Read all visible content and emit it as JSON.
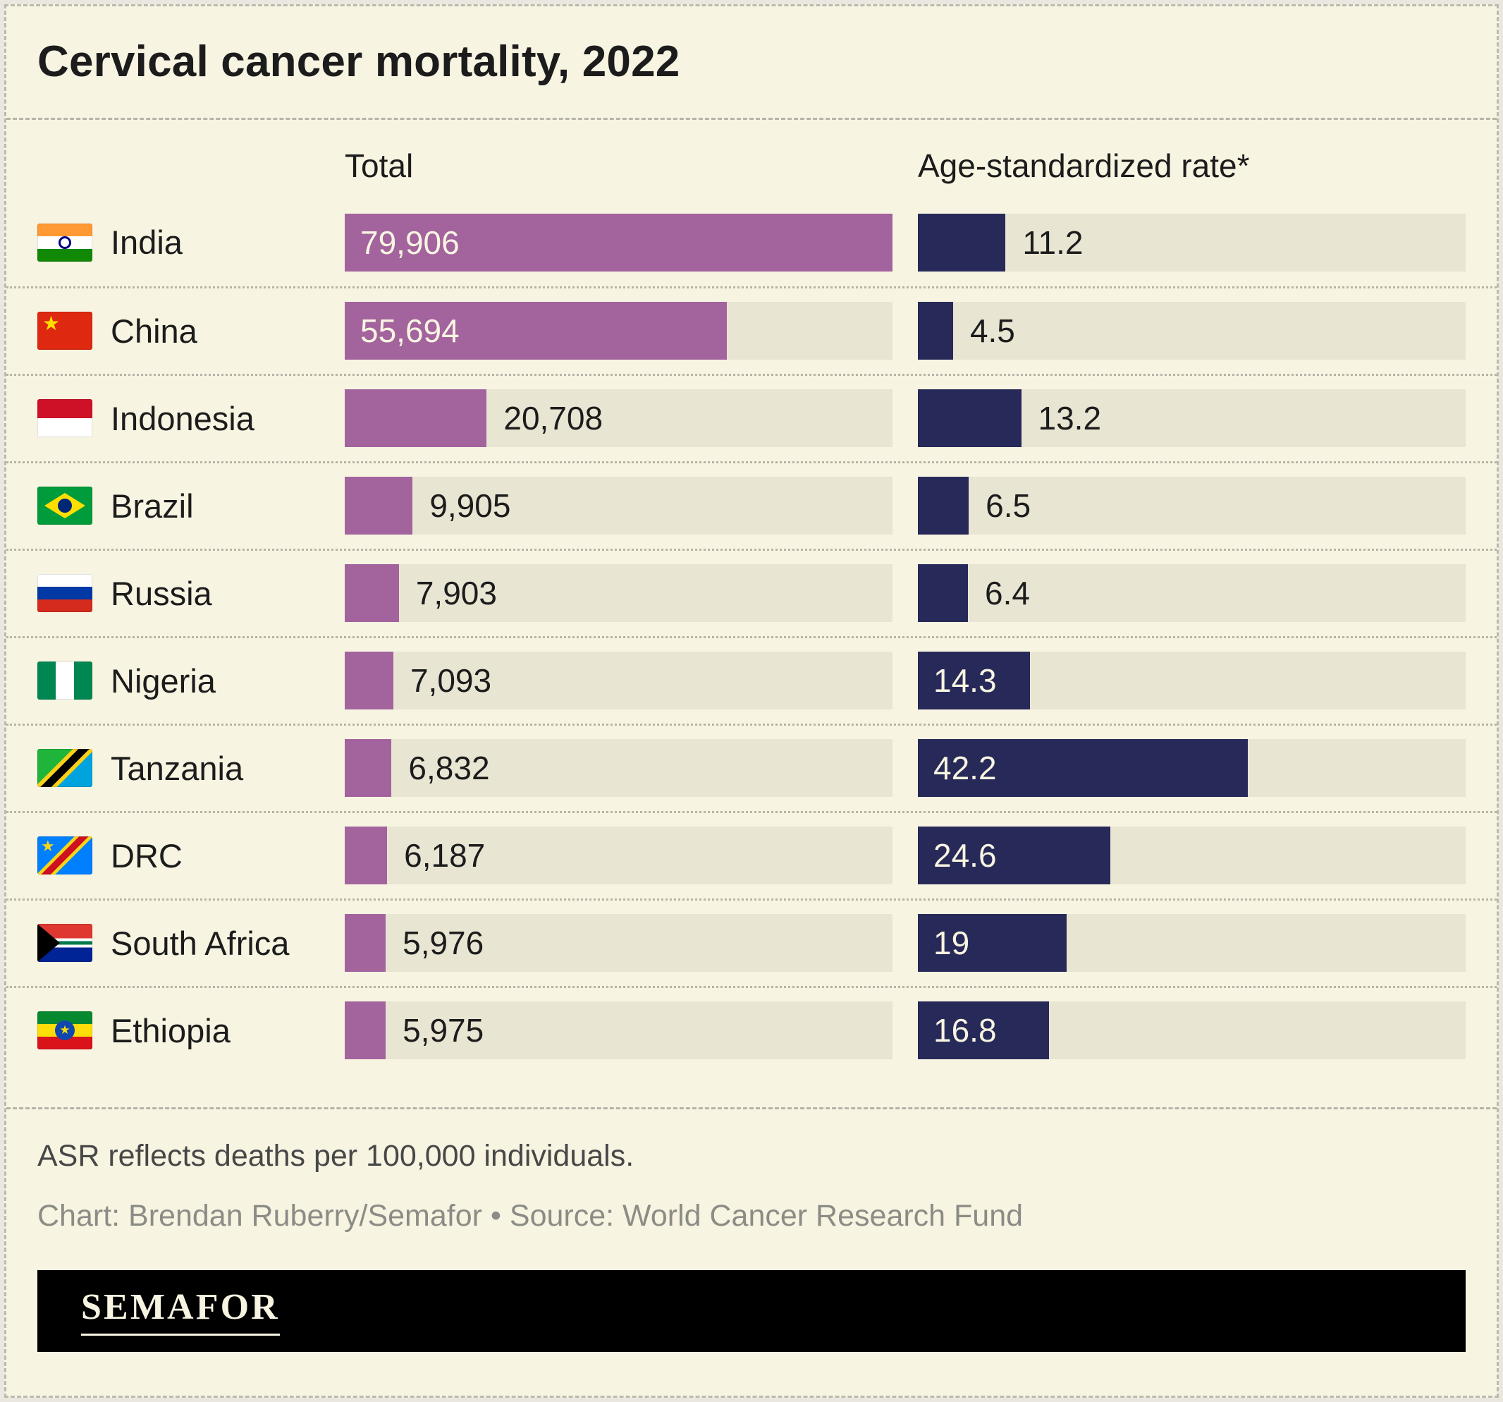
{
  "title": "Cervical cancer mortality, 2022",
  "columns": {
    "total": "Total",
    "rate": "Age-standardized rate*"
  },
  "chart_data": {
    "type": "bar",
    "title": "Cervical cancer mortality, 2022",
    "orientation": "horizontal",
    "categories": [
      "India",
      "China",
      "Indonesia",
      "Brazil",
      "Russia",
      "Nigeria",
      "Tanzania",
      "DRC",
      "South Africa",
      "Ethiopia"
    ],
    "flags": [
      "india",
      "china",
      "indonesia",
      "brazil",
      "russia",
      "nigeria",
      "tanzania",
      "drc",
      "south-africa",
      "ethiopia"
    ],
    "series": [
      {
        "name": "Total",
        "values": [
          79906,
          55694,
          20708,
          9905,
          7903,
          7093,
          6832,
          6187,
          5976,
          5975
        ],
        "labels": [
          "79,906",
          "55,694",
          "20,708",
          "9,905",
          "7,903",
          "7,093",
          "6,832",
          "6,187",
          "5,976",
          "5,975"
        ],
        "axis_max": 79906,
        "color": "#a3639d",
        "label_inside": [
          true,
          true,
          false,
          false,
          false,
          false,
          false,
          false,
          false,
          false
        ]
      },
      {
        "name": "Age-standardized rate*",
        "values": [
          11.2,
          4.5,
          13.2,
          6.5,
          6.4,
          14.3,
          42.2,
          24.6,
          19,
          16.8
        ],
        "labels": [
          "11.2",
          "4.5",
          "13.2",
          "6.5",
          "6.4",
          "14.3",
          "42.2",
          "24.6",
          "19",
          "16.8"
        ],
        "axis_max": 70,
        "color": "#272a58",
        "label_inside": [
          false,
          false,
          false,
          false,
          false,
          true,
          true,
          true,
          true,
          true
        ]
      }
    ],
    "legend_position": "none",
    "grid": false
  },
  "footnote": "ASR reflects deaths per 100,000 individuals.",
  "credit": "Chart: Brendan Ruberry/Semafor • Source: World Cancer Research Fund",
  "logo": "SEMAFOR",
  "colors": {
    "background": "#f8f4e2",
    "track": "#e9e5d3",
    "total_bar": "#a3639d",
    "rate_bar": "#272a58",
    "text": "#1c1c1c",
    "inside_label": "#f8f4e2"
  }
}
